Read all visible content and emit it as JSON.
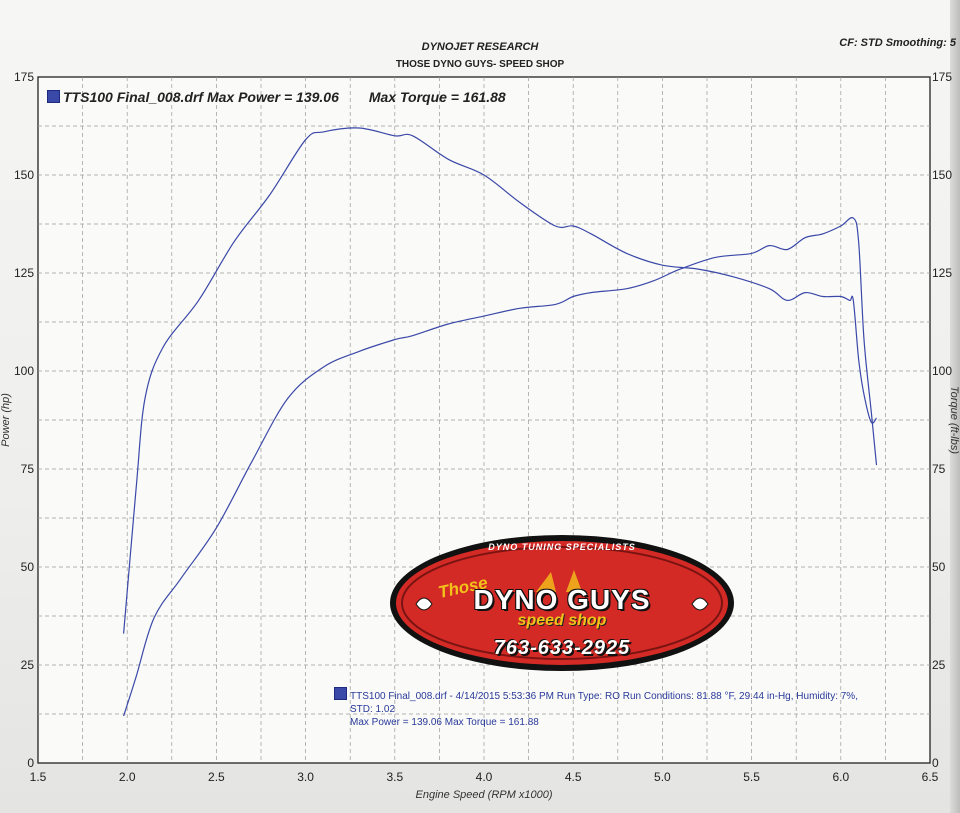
{
  "header": {
    "company": "DYNOJET RESEARCH",
    "shop": "THOSE DYNO GUYS- SPEED SHOP",
    "settings": "CF: STD  Smoothing: 5"
  },
  "legend_top": {
    "run_power": "TTS100 Final_008.drf Max Power = 139.06",
    "torque": "Max Torque = 161.88"
  },
  "legend_bottom": {
    "line1": "TTS100 Final_008.drf - 4/14/2015 5:53:36 PM  Run Type: RO  Run Conditions: 81.88 °F, 29.44 in-Hg,  Humidity:  7%,",
    "line2": "STD: 1.02",
    "line3": "Max Power = 139.06  Max Torque = 161.88"
  },
  "logo": {
    "tagline": "DYNO TUNING SPECIALISTS",
    "those": "Those",
    "name": "DYNO GUYS",
    "speed": "speed shop",
    "phone": "763-633-2925",
    "colors": {
      "red": "#d42a26",
      "yellow": "#f2c21a",
      "black": "#111111"
    }
  },
  "colors": {
    "curve": "#3a48a8",
    "grid": "#9a9a9a"
  },
  "chart_data": {
    "type": "line",
    "xlabel": "Engine Speed (RPM x1000)",
    "ylabel": "Power (hp)",
    "y2label": "Torque (ft-lbs)",
    "xlim": [
      1.5,
      6.5
    ],
    "ylim": [
      0,
      175
    ],
    "y2lim": [
      0,
      175
    ],
    "x_ticks": [
      "1.5",
      "2.0",
      "2.5",
      "3.0",
      "3.5",
      "4.0",
      "4.5",
      "5.0",
      "5.5",
      "6.0",
      "6.5"
    ],
    "y_ticks": [
      "0",
      "25",
      "50",
      "75",
      "100",
      "125",
      "150",
      "175"
    ],
    "y2_ticks": [
      "0",
      "25",
      "50",
      "75",
      "100",
      "125",
      "150",
      "175"
    ],
    "grid": true,
    "series": [
      {
        "name": "Power",
        "x": [
          1.98,
          2.05,
          2.15,
          2.3,
          2.5,
          2.7,
          2.9,
          3.1,
          3.3,
          3.5,
          3.6,
          3.8,
          4.0,
          4.2,
          4.4,
          4.5,
          4.6,
          4.8,
          4.95,
          5.1,
          5.3,
          5.5,
          5.6,
          5.7,
          5.8,
          5.9,
          6.0,
          6.07,
          6.1,
          6.13,
          6.17,
          6.2
        ],
        "values": [
          12,
          22,
          37,
          47,
          60,
          77,
          93,
          101,
          105,
          108,
          109,
          112,
          114,
          116,
          117,
          119,
          120,
          121,
          123,
          126,
          129,
          130,
          132,
          131,
          134,
          135,
          137,
          139,
          133,
          108,
          90,
          76
        ]
      },
      {
        "name": "Torque",
        "x": [
          1.98,
          2.05,
          2.1,
          2.2,
          2.4,
          2.6,
          2.8,
          3.0,
          3.1,
          3.3,
          3.5,
          3.6,
          3.8,
          4.0,
          4.2,
          4.4,
          4.5,
          4.6,
          4.8,
          5.0,
          5.2,
          5.4,
          5.6,
          5.7,
          5.8,
          5.9,
          6.0,
          6.05,
          6.07,
          6.1,
          6.13,
          6.17,
          6.2
        ],
        "values": [
          33,
          70,
          93,
          106,
          118,
          133,
          145,
          159,
          161,
          162,
          160,
          160,
          154,
          150,
          143,
          137,
          137,
          135,
          130,
          127,
          126,
          124,
          121,
          118,
          120,
          119,
          119,
          118,
          118,
          103,
          94,
          87,
          88
        ]
      }
    ]
  }
}
